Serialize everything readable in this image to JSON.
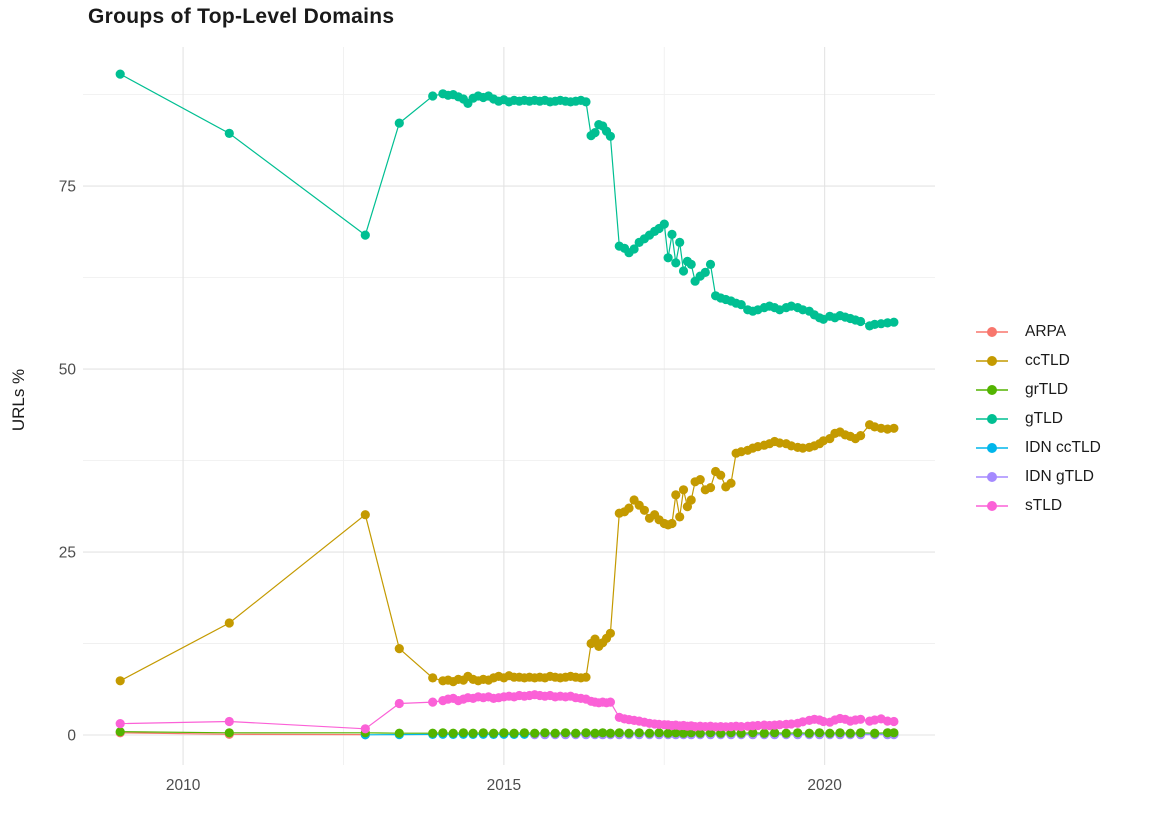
{
  "chart_data": {
    "type": "line",
    "title": "Groups of Top-Level Domains",
    "xlabel": "",
    "ylabel": "URLs %",
    "legend_position": "right",
    "grid": "major+minor",
    "x_range": [
      2008.44,
      2021.72
    ],
    "y_range": [
      -4.1,
      94.0
    ],
    "x_ticks": [
      2010,
      2015,
      2020
    ],
    "x_tick_labels": [
      "2010",
      "2015",
      "2020"
    ],
    "x_minor": [
      2012.5,
      2017.5
    ],
    "y_ticks": [
      0,
      25,
      50,
      75
    ],
    "y_tick_labels": [
      "0",
      "25",
      "50",
      "75"
    ],
    "y_minor": [
      12.5,
      37.5,
      62.5,
      87.5
    ],
    "series": [
      {
        "name": "ARPA",
        "color": "#F8766D",
        "x": [
          2009.02,
          2010.72,
          2012.84
        ],
        "y": [
          0.3,
          0.1,
          0.05
        ]
      },
      {
        "name": "ccTLD",
        "color": "#C49A00",
        "x": [
          2009.02,
          2010.72,
          2012.84,
          2013.37,
          2013.89,
          2014.05,
          2014.13,
          2014.21,
          2014.29,
          2014.37,
          2014.44,
          2014.52,
          2014.6,
          2014.68,
          2014.76,
          2014.84,
          2014.92,
          2015.0,
          2015.08,
          2015.16,
          2015.24,
          2015.32,
          2015.4,
          2015.48,
          2015.56,
          2015.64,
          2015.72,
          2015.8,
          2015.88,
          2015.96,
          2016.04,
          2016.12,
          2016.2,
          2016.28,
          2016.36,
          2016.42,
          2016.48,
          2016.54,
          2016.6,
          2016.66,
          2016.8,
          2016.88,
          2016.95,
          2017.03,
          2017.11,
          2017.19,
          2017.27,
          2017.35,
          2017.42,
          2017.5,
          2017.56,
          2017.62,
          2017.68,
          2017.74,
          2017.8,
          2017.86,
          2017.92,
          2017.98,
          2018.06,
          2018.14,
          2018.22,
          2018.3,
          2018.38,
          2018.46,
          2018.54,
          2018.62,
          2018.7,
          2018.8,
          2018.88,
          2018.96,
          2019.06,
          2019.14,
          2019.22,
          2019.3,
          2019.4,
          2019.48,
          2019.58,
          2019.66,
          2019.76,
          2019.84,
          2019.92,
          2019.98,
          2020.08,
          2020.16,
          2020.24,
          2020.32,
          2020.4,
          2020.48,
          2020.56,
          2020.7,
          2020.78,
          2020.88,
          2020.98,
          2021.08
        ],
        "y": [
          7.4,
          15.3,
          30.1,
          11.8,
          7.8,
          7.4,
          7.5,
          7.3,
          7.6,
          7.5,
          8.0,
          7.6,
          7.4,
          7.6,
          7.5,
          7.8,
          8.0,
          7.8,
          8.1,
          7.9,
          7.9,
          7.8,
          7.9,
          7.8,
          7.9,
          7.8,
          8.0,
          7.9,
          7.8,
          7.9,
          8.0,
          7.9,
          7.8,
          7.9,
          12.5,
          13.1,
          12.1,
          12.6,
          13.2,
          13.9,
          30.3,
          30.5,
          31.0,
          32.1,
          31.4,
          30.7,
          29.6,
          30.1,
          29.4,
          28.9,
          28.7,
          28.9,
          32.8,
          29.8,
          33.5,
          31.2,
          32.1,
          34.6,
          34.9,
          33.5,
          33.8,
          36.0,
          35.5,
          33.9,
          34.4,
          38.5,
          38.7,
          38.9,
          39.2,
          39.4,
          39.6,
          39.8,
          40.1,
          39.9,
          39.8,
          39.5,
          39.3,
          39.2,
          39.3,
          39.5,
          39.8,
          40.2,
          40.5,
          41.2,
          41.4,
          41.0,
          40.8,
          40.5,
          40.9,
          42.4,
          42.1,
          41.9,
          41.8,
          41.9
        ]
      },
      {
        "name": "grTLD",
        "color": "#53B400",
        "x": [
          2009.02,
          2010.72,
          2012.84,
          2013.37,
          2013.89,
          2014.05,
          2014.21,
          2014.37,
          2014.52,
          2014.68,
          2014.84,
          2015.0,
          2015.16,
          2015.32,
          2015.48,
          2015.64,
          2015.8,
          2015.96,
          2016.12,
          2016.28,
          2016.42,
          2016.54,
          2016.66,
          2016.8,
          2016.95,
          2017.11,
          2017.27,
          2017.42,
          2017.56,
          2017.68,
          2017.8,
          2017.92,
          2018.06,
          2018.22,
          2018.38,
          2018.54,
          2018.7,
          2018.88,
          2019.06,
          2019.22,
          2019.4,
          2019.58,
          2019.76,
          2019.92,
          2020.08,
          2020.24,
          2020.4,
          2020.56,
          2020.78,
          2020.98,
          2021.08
        ],
        "y": [
          0.45,
          0.3,
          0.3,
          0.25,
          0.25,
          0.3,
          0.25,
          0.3,
          0.25,
          0.3,
          0.25,
          0.3,
          0.25,
          0.3,
          0.25,
          0.3,
          0.25,
          0.3,
          0.25,
          0.3,
          0.25,
          0.3,
          0.25,
          0.3,
          0.25,
          0.3,
          0.25,
          0.3,
          0.25,
          0.3,
          0.25,
          0.3,
          0.25,
          0.3,
          0.25,
          0.3,
          0.25,
          0.3,
          0.25,
          0.3,
          0.25,
          0.3,
          0.25,
          0.3,
          0.25,
          0.3,
          0.25,
          0.3,
          0.25,
          0.3,
          0.3
        ]
      },
      {
        "name": "gTLD",
        "color": "#00BF92",
        "x": [
          2009.02,
          2010.72,
          2012.84,
          2013.37,
          2013.89,
          2014.05,
          2014.13,
          2014.21,
          2014.29,
          2014.37,
          2014.44,
          2014.52,
          2014.6,
          2014.68,
          2014.76,
          2014.84,
          2014.92,
          2015.0,
          2015.08,
          2015.16,
          2015.24,
          2015.32,
          2015.4,
          2015.48,
          2015.56,
          2015.64,
          2015.72,
          2015.8,
          2015.88,
          2015.96,
          2016.04,
          2016.12,
          2016.2,
          2016.28,
          2016.36,
          2016.42,
          2016.48,
          2016.54,
          2016.6,
          2016.66,
          2016.8,
          2016.88,
          2016.95,
          2017.03,
          2017.11,
          2017.19,
          2017.27,
          2017.35,
          2017.42,
          2017.5,
          2017.56,
          2017.62,
          2017.68,
          2017.74,
          2017.8,
          2017.86,
          2017.92,
          2017.98,
          2018.06,
          2018.14,
          2018.22,
          2018.3,
          2018.38,
          2018.46,
          2018.54,
          2018.62,
          2018.7,
          2018.8,
          2018.88,
          2018.96,
          2019.06,
          2019.14,
          2019.22,
          2019.3,
          2019.4,
          2019.48,
          2019.58,
          2019.66,
          2019.76,
          2019.84,
          2019.92,
          2019.98,
          2020.08,
          2020.16,
          2020.24,
          2020.32,
          2020.4,
          2020.48,
          2020.56,
          2020.7,
          2020.78,
          2020.88,
          2020.98,
          2021.08
        ],
        "y": [
          90.3,
          82.2,
          68.3,
          83.6,
          87.3,
          87.6,
          87.4,
          87.5,
          87.2,
          86.9,
          86.3,
          87.0,
          87.3,
          87.1,
          87.3,
          86.9,
          86.6,
          86.8,
          86.5,
          86.7,
          86.6,
          86.7,
          86.6,
          86.7,
          86.6,
          86.7,
          86.5,
          86.6,
          86.7,
          86.6,
          86.5,
          86.6,
          86.7,
          86.5,
          81.9,
          82.3,
          83.4,
          83.2,
          82.5,
          81.8,
          66.8,
          66.5,
          65.9,
          66.4,
          67.3,
          67.8,
          68.3,
          68.8,
          69.2,
          69.8,
          65.2,
          68.4,
          64.5,
          67.3,
          63.4,
          64.7,
          64.3,
          62.0,
          62.7,
          63.2,
          64.3,
          60.0,
          59.7,
          59.5,
          59.3,
          59.0,
          58.8,
          58.1,
          57.9,
          58.1,
          58.4,
          58.6,
          58.4,
          58.1,
          58.4,
          58.6,
          58.4,
          58.1,
          57.9,
          57.4,
          57.0,
          56.8,
          57.2,
          57.0,
          57.3,
          57.1,
          56.9,
          56.7,
          56.5,
          55.9,
          56.1,
          56.2,
          56.3,
          56.4
        ]
      },
      {
        "name": "IDN ccTLD",
        "color": "#00B6EB",
        "x": [
          2012.84,
          2013.37,
          2013.89,
          2014.05,
          2014.21,
          2014.37,
          2014.52,
          2014.68,
          2014.84,
          2015.0,
          2015.16,
          2015.32,
          2015.48,
          2015.64,
          2015.8,
          2015.96,
          2016.12,
          2016.28,
          2016.42,
          2016.54,
          2016.66,
          2016.8,
          2016.95,
          2017.11,
          2017.27,
          2017.42,
          2017.56,
          2017.68,
          2017.8,
          2017.92,
          2018.06,
          2018.22,
          2018.38,
          2018.54,
          2018.7,
          2018.88,
          2019.06,
          2019.22,
          2019.4,
          2019.58,
          2019.76,
          2019.92,
          2020.08,
          2020.24,
          2020.4,
          2020.56,
          2020.78,
          2020.98,
          2021.08
        ],
        "y": [
          0.02,
          0.06,
          0.08,
          0.1,
          0.08,
          0.1,
          0.08,
          0.1,
          0.08,
          0.1,
          0.08,
          0.1,
          0.08,
          0.1,
          0.08,
          0.1,
          0.08,
          0.1,
          0.08,
          0.1,
          0.08,
          0.1,
          0.08,
          0.1,
          0.08,
          0.1,
          0.08,
          0.1,
          0.08,
          0.1,
          0.08,
          0.1,
          0.08,
          0.1,
          0.08,
          0.1,
          0.08,
          0.1,
          0.08,
          0.1,
          0.08,
          0.1,
          0.08,
          0.1,
          0.08,
          0.1,
          0.08,
          0.1,
          0.1
        ]
      },
      {
        "name": "IDN gTLD",
        "color": "#A58AFF",
        "x": [
          2015.48,
          2015.64,
          2015.8,
          2015.96,
          2016.12,
          2016.28,
          2016.42,
          2016.54,
          2016.66,
          2016.8,
          2016.95,
          2017.11,
          2017.27,
          2017.42,
          2017.56,
          2017.68,
          2017.8,
          2017.92,
          2018.06,
          2018.22,
          2018.38,
          2018.54,
          2018.7,
          2018.88,
          2019.06,
          2019.22,
          2019.4,
          2019.58,
          2019.76,
          2019.92,
          2020.08,
          2020.24,
          2020.4,
          2020.56,
          2020.78,
          2020.98,
          2021.08
        ],
        "y": [
          0.05,
          0.04,
          0.05,
          0.04,
          0.05,
          0.04,
          0.05,
          0.04,
          0.05,
          0.04,
          0.05,
          0.04,
          0.05,
          0.04,
          0.05,
          0.04,
          0.05,
          0.04,
          0.05,
          0.04,
          0.05,
          0.04,
          0.05,
          0.04,
          0.05,
          0.04,
          0.05,
          0.04,
          0.05,
          0.04,
          0.05,
          0.04,
          0.05,
          0.04,
          0.05,
          0.04,
          0.05
        ]
      },
      {
        "name": "sTLD",
        "color": "#FB61D7",
        "x": [
          2009.02,
          2010.72,
          2012.84,
          2013.37,
          2013.89,
          2014.05,
          2014.13,
          2014.21,
          2014.29,
          2014.37,
          2014.44,
          2014.52,
          2014.6,
          2014.68,
          2014.76,
          2014.84,
          2014.92,
          2015.0,
          2015.08,
          2015.16,
          2015.24,
          2015.32,
          2015.4,
          2015.48,
          2015.56,
          2015.64,
          2015.72,
          2015.8,
          2015.88,
          2015.96,
          2016.04,
          2016.12,
          2016.2,
          2016.28,
          2016.36,
          2016.42,
          2016.48,
          2016.54,
          2016.6,
          2016.66,
          2016.8,
          2016.88,
          2016.95,
          2017.03,
          2017.11,
          2017.19,
          2017.27,
          2017.35,
          2017.42,
          2017.5,
          2017.56,
          2017.62,
          2017.68,
          2017.74,
          2017.8,
          2017.86,
          2017.92,
          2017.98,
          2018.06,
          2018.14,
          2018.22,
          2018.3,
          2018.38,
          2018.46,
          2018.54,
          2018.62,
          2018.7,
          2018.8,
          2018.88,
          2018.96,
          2019.06,
          2019.14,
          2019.22,
          2019.3,
          2019.4,
          2019.48,
          2019.58,
          2019.66,
          2019.76,
          2019.84,
          2019.92,
          2019.98,
          2020.08,
          2020.16,
          2020.24,
          2020.32,
          2020.4,
          2020.48,
          2020.56,
          2020.7,
          2020.78,
          2020.88,
          2020.98,
          2021.08
        ],
        "y": [
          1.55,
          1.85,
          0.85,
          4.3,
          4.5,
          4.7,
          4.9,
          5.0,
          4.7,
          4.9,
          5.1,
          5.0,
          5.2,
          5.1,
          5.2,
          5.0,
          5.1,
          5.2,
          5.3,
          5.2,
          5.4,
          5.3,
          5.4,
          5.5,
          5.4,
          5.3,
          5.4,
          5.2,
          5.3,
          5.2,
          5.3,
          5.1,
          5.0,
          4.9,
          4.6,
          4.5,
          4.4,
          4.5,
          4.4,
          4.5,
          2.4,
          2.2,
          2.1,
          2.0,
          1.9,
          1.75,
          1.6,
          1.5,
          1.45,
          1.4,
          1.38,
          1.3,
          1.35,
          1.25,
          1.3,
          1.2,
          1.25,
          1.15,
          1.2,
          1.15,
          1.2,
          1.1,
          1.15,
          1.1,
          1.15,
          1.2,
          1.15,
          1.2,
          1.25,
          1.3,
          1.35,
          1.3,
          1.35,
          1.4,
          1.45,
          1.5,
          1.6,
          1.8,
          2.0,
          2.15,
          2.05,
          1.85,
          1.75,
          2.05,
          2.25,
          2.15,
          1.9,
          2.05,
          2.15,
          1.9,
          2.05,
          2.2,
          1.9,
          1.85
        ]
      }
    ]
  }
}
